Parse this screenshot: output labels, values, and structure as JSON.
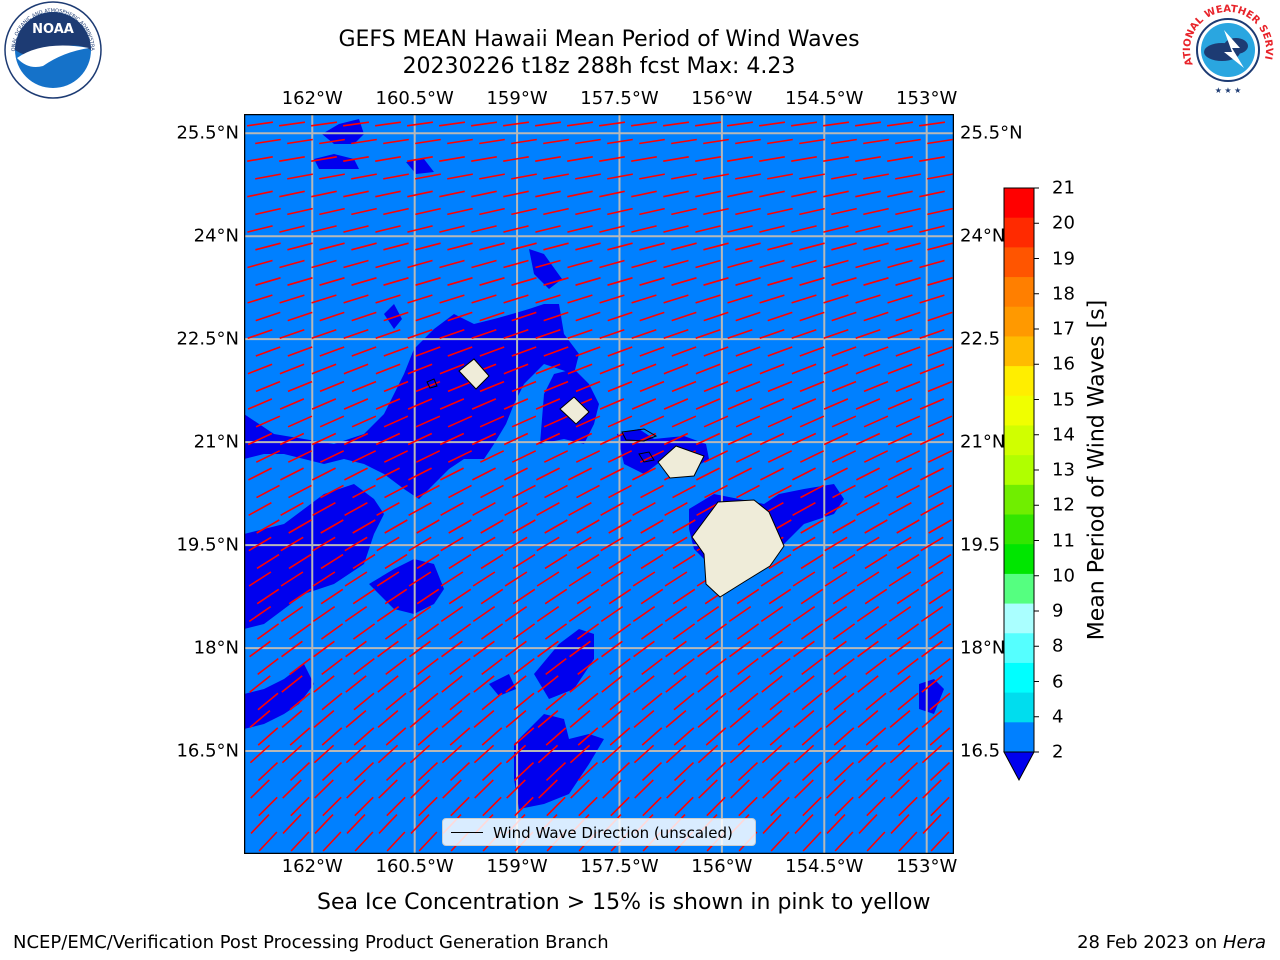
{
  "title_line1": "GEFS MEAN Hawaii Mean Period of Wind Waves",
  "title_line2": "20230226 t18z 288h fcst   Max: 4.23",
  "lon_ticks": [
    {
      "label": "162°W",
      "lon": -162.0
    },
    {
      "label": "160.5°W",
      "lon": -160.5
    },
    {
      "label": "159°W",
      "lon": -159.0
    },
    {
      "label": "157.5°W",
      "lon": -157.5
    },
    {
      "label": "156°W",
      "lon": -156.0
    },
    {
      "label": "154.5°W",
      "lon": -154.5
    },
    {
      "label": "153°W",
      "lon": -153.0
    }
  ],
  "lat_ticks_left": [
    {
      "label": "25.5°N",
      "lat": 25.5
    },
    {
      "label": "24°N",
      "lat": 24.0
    },
    {
      "label": "22.5°N",
      "lat": 22.5
    },
    {
      "label": "21°N",
      "lat": 21.0
    },
    {
      "label": "19.5°N",
      "lat": 19.5
    },
    {
      "label": "18°N",
      "lat": 18.0
    },
    {
      "label": "16.5°N",
      "lat": 16.5
    }
  ],
  "lat_ticks_right": [
    {
      "label": "25.5°N",
      "lat": 25.5
    },
    {
      "label": "24°N",
      "lat": 24.0
    },
    {
      "label": "22.5",
      "lat": 22.5
    },
    {
      "label": "21°N",
      "lat": 21.0
    },
    {
      "label": "19.5",
      "lat": 19.5
    },
    {
      "label": "18°N",
      "lat": 18.0
    },
    {
      "label": "16.5",
      "lat": 16.5
    }
  ],
  "map_extent": {
    "lon_min": -163.0,
    "lon_max": -152.6,
    "lat_min": 15.0,
    "lat_max": 25.78
  },
  "colorbar": {
    "label": "Mean Period of Wind Waves [s]",
    "ticks": [
      "21",
      "20",
      "19",
      "18",
      "17",
      "16",
      "15",
      "14",
      "13",
      "12",
      "11",
      "10",
      "9",
      "8",
      "6",
      "4",
      "2"
    ],
    "colors": [
      "#ff0000",
      "#ff2a00",
      "#ff5500",
      "#ff7f00",
      "#ff9900",
      "#ffbb00",
      "#ffee00",
      "#f0ff00",
      "#d0ff00",
      "#b0ff00",
      "#70ee00",
      "#33e600",
      "#00e600",
      "#55ff80",
      "#aaffff",
      "#55ffff",
      "#00ffff",
      "#00ddee",
      "#0080ff"
    ],
    "extend_color": "#0000ee"
  },
  "field_colors": {
    "ocean_low": "#0080ff",
    "ocean_lower": "#0000ee",
    "land": "#efecd9",
    "arrow": "#ff0000",
    "grid": "#b8b8b8"
  },
  "legend_label": "Wind Wave Direction (unscaled)",
  "subnote": "Sea Ice Concentration > 15% is shown in pink to yellow",
  "footer_left": "NCEP/EMC/Verification Post Processing Product Generation Branch",
  "footer_right_date": "28 Feb 2023 on ",
  "footer_right_host": "Hera",
  "logos": {
    "noaa_text": "NOAA",
    "noaa_ring": "NATIONAL OCEANIC AND ATMOSPHERIC ADMINISTRATION",
    "noaa_ring_bottom": "U.S. DEPARTMENT OF COMMERCE",
    "nws_ring": "NATIONAL WEATHER SERVICE"
  }
}
